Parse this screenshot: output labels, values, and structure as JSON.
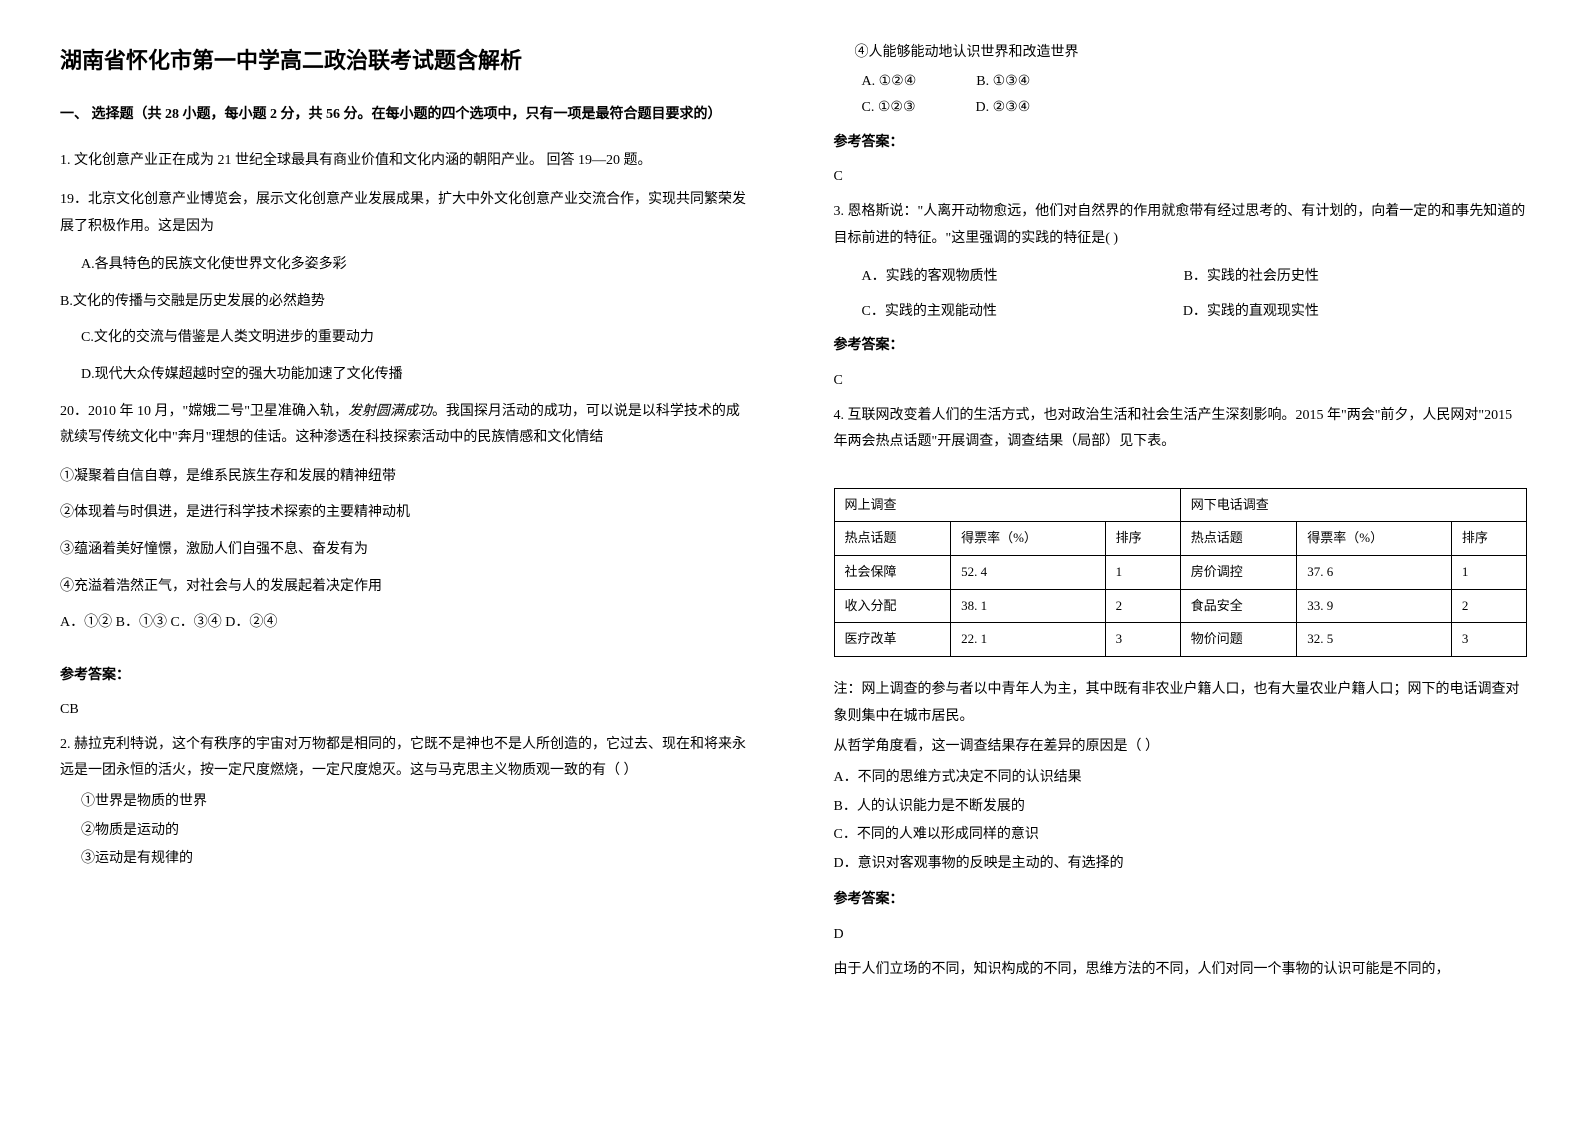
{
  "title": "湖南省怀化市第一中学高二政治联考试题含解析",
  "section1": {
    "header": "一、 选择题（共 28 小题，每小题 2 分，共 56 分。在每小题的四个选项中，只有一项是最符合题目要求的）"
  },
  "q1": {
    "stem": "1. 文化创意产业正在成为 21 世纪全球最具有商业价值和文化内涵的朝阳产业。 回答 19—20 题。",
    "sub19": "19．北京文化创意产业博览会，展示文化创意产业发展成果，扩大中外文化创意产业交流合作，实现共同繁荣发展了积极作用。这是因为",
    "optA": "A.各具特色的民族文化使世界文化多姿多彩",
    "optB": "B.文化的传播与交融是历史发展的必然趋势",
    "optC": "C.文化的交流与借鉴是人类文明进步的重要动力",
    "optD": "D.现代大众传媒超越时空的强大功能加速了文化传播",
    "sub20_prefix": "20．2010 年 10 月，\"嫦娥二号\"卫星准确入轨，",
    "sub20_italic": "发射圆满成功",
    "sub20_suffix": "。我国探月活动的成功，可以说是以科学技术的成就续写传统文化中\"奔月\"理想的佳话。这种渗透在科技探索活动中的民族情感和文化情结",
    "item1": "①凝聚着自信自尊，是维系民族生存和发展的精神纽带",
    "item2": "②体现着与时俱进，是进行科学技术探索的主要精神动机",
    "item3": "③蕴涵着美好憧憬，激励人们自强不息、奋发有为",
    "item4": "④充溢着浩然正气，对社会与人的发展起着决定作用",
    "options": "A．①②  B．①③  C．③④  D．②④",
    "answerLabel": "参考答案：",
    "answer": "CB"
  },
  "q2": {
    "stem": "2. 赫拉克利特说，这个有秩序的宇宙对万物都是相同的，它既不是神也不是人所创造的，它过去、现在和将来永远是一团永恒的活火，按一定尺度燃烧，一定尺度熄灭。这与马克思主义物质观一致的有（  ）",
    "item1": "①世界是物质的世界",
    "item2": "②物质是运动的",
    "item3": "③运动是有规律的",
    "item4": "④人能够能动地认识世界和改造世界",
    "optA": "A. ①②④",
    "optB": "B. ①③④",
    "optC": "C. ①②③",
    "optD": "D. ②③④",
    "answerLabel": "参考答案：",
    "answer": "C"
  },
  "q3": {
    "stem": "3. 恩格斯说：\"人离开动物愈远，他们对自然界的作用就愈带有经过思考的、有计划的，向着一定的和事先知道的目标前进的特征。\"这里强调的实践的特征是(    )",
    "optA": "A．实践的客观物质性",
    "optB": "B．实践的社会历史性",
    "optC": "C．实践的主观能动性",
    "optD": "D．实践的直观现实性",
    "answerLabel": "参考答案：",
    "answer": "C"
  },
  "q4": {
    "stem": "4. 互联网改变着人们的生活方式，也对政治生活和社会生活产生深刻影响。2015 年\"两会\"前夕，人民网对\"2015 年两会热点话题\"开展调查，调查结果（局部）见下表。",
    "table": {
      "headers": {
        "h1": "网上调查",
        "h2": "网下电话调查",
        "c1": "热点话题",
        "c2": "得票率（%）",
        "c3": "排序",
        "c4": "热点话题",
        "c5": "得票率（%）",
        "c6": "排序"
      },
      "rows": [
        {
          "a": "社会保障",
          "b": "52. 4",
          "c": "1",
          "d": "房价调控",
          "e": "37. 6",
          "f": "1"
        },
        {
          "a": "收入分配",
          "b": "38.  1",
          "c": "2",
          "d": "食品安全",
          "e": "33. 9",
          "f": "2"
        },
        {
          "a": "医疗改革",
          "b": "22. 1",
          "c": "3",
          "d": "物价问题",
          "e": "32. 5",
          "f": "3"
        }
      ]
    },
    "note": "注：网上调查的参与者以中青年人为主，其中既有非农业户籍人口，也有大量农业户籍人口；网下的电话调查对象则集中在城市居民。",
    "prompt": "从哲学角度看，这一调查结果存在差异的原因是（  ）",
    "optA": "A．不同的思维方式决定不同的认识结果",
    "optB": "B．人的认识能力是不断发展的",
    "optC": "C．不同的人难以形成同样的意识",
    "optD": "D．意识对客观事物的反映是主动的、有选择的",
    "answerLabel": "参考答案：",
    "answer": "D",
    "explain": "由于人们立场的不同，知识构成的不同，思维方法的不同，人们对同一个事物的认识可能是不同的，"
  }
}
